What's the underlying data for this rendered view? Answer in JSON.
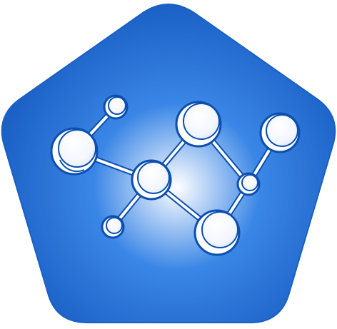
{
  "icon": {
    "name": "molecule-icon",
    "shape": "rounded-pentagon",
    "colors": {
      "outer": "#1a5fc4",
      "mid": "#3a86e6",
      "center": "#ffffff",
      "bond": "#ffffff",
      "atom_fill": "#ffffff",
      "atom_outline": "#0b4fb0"
    }
  }
}
